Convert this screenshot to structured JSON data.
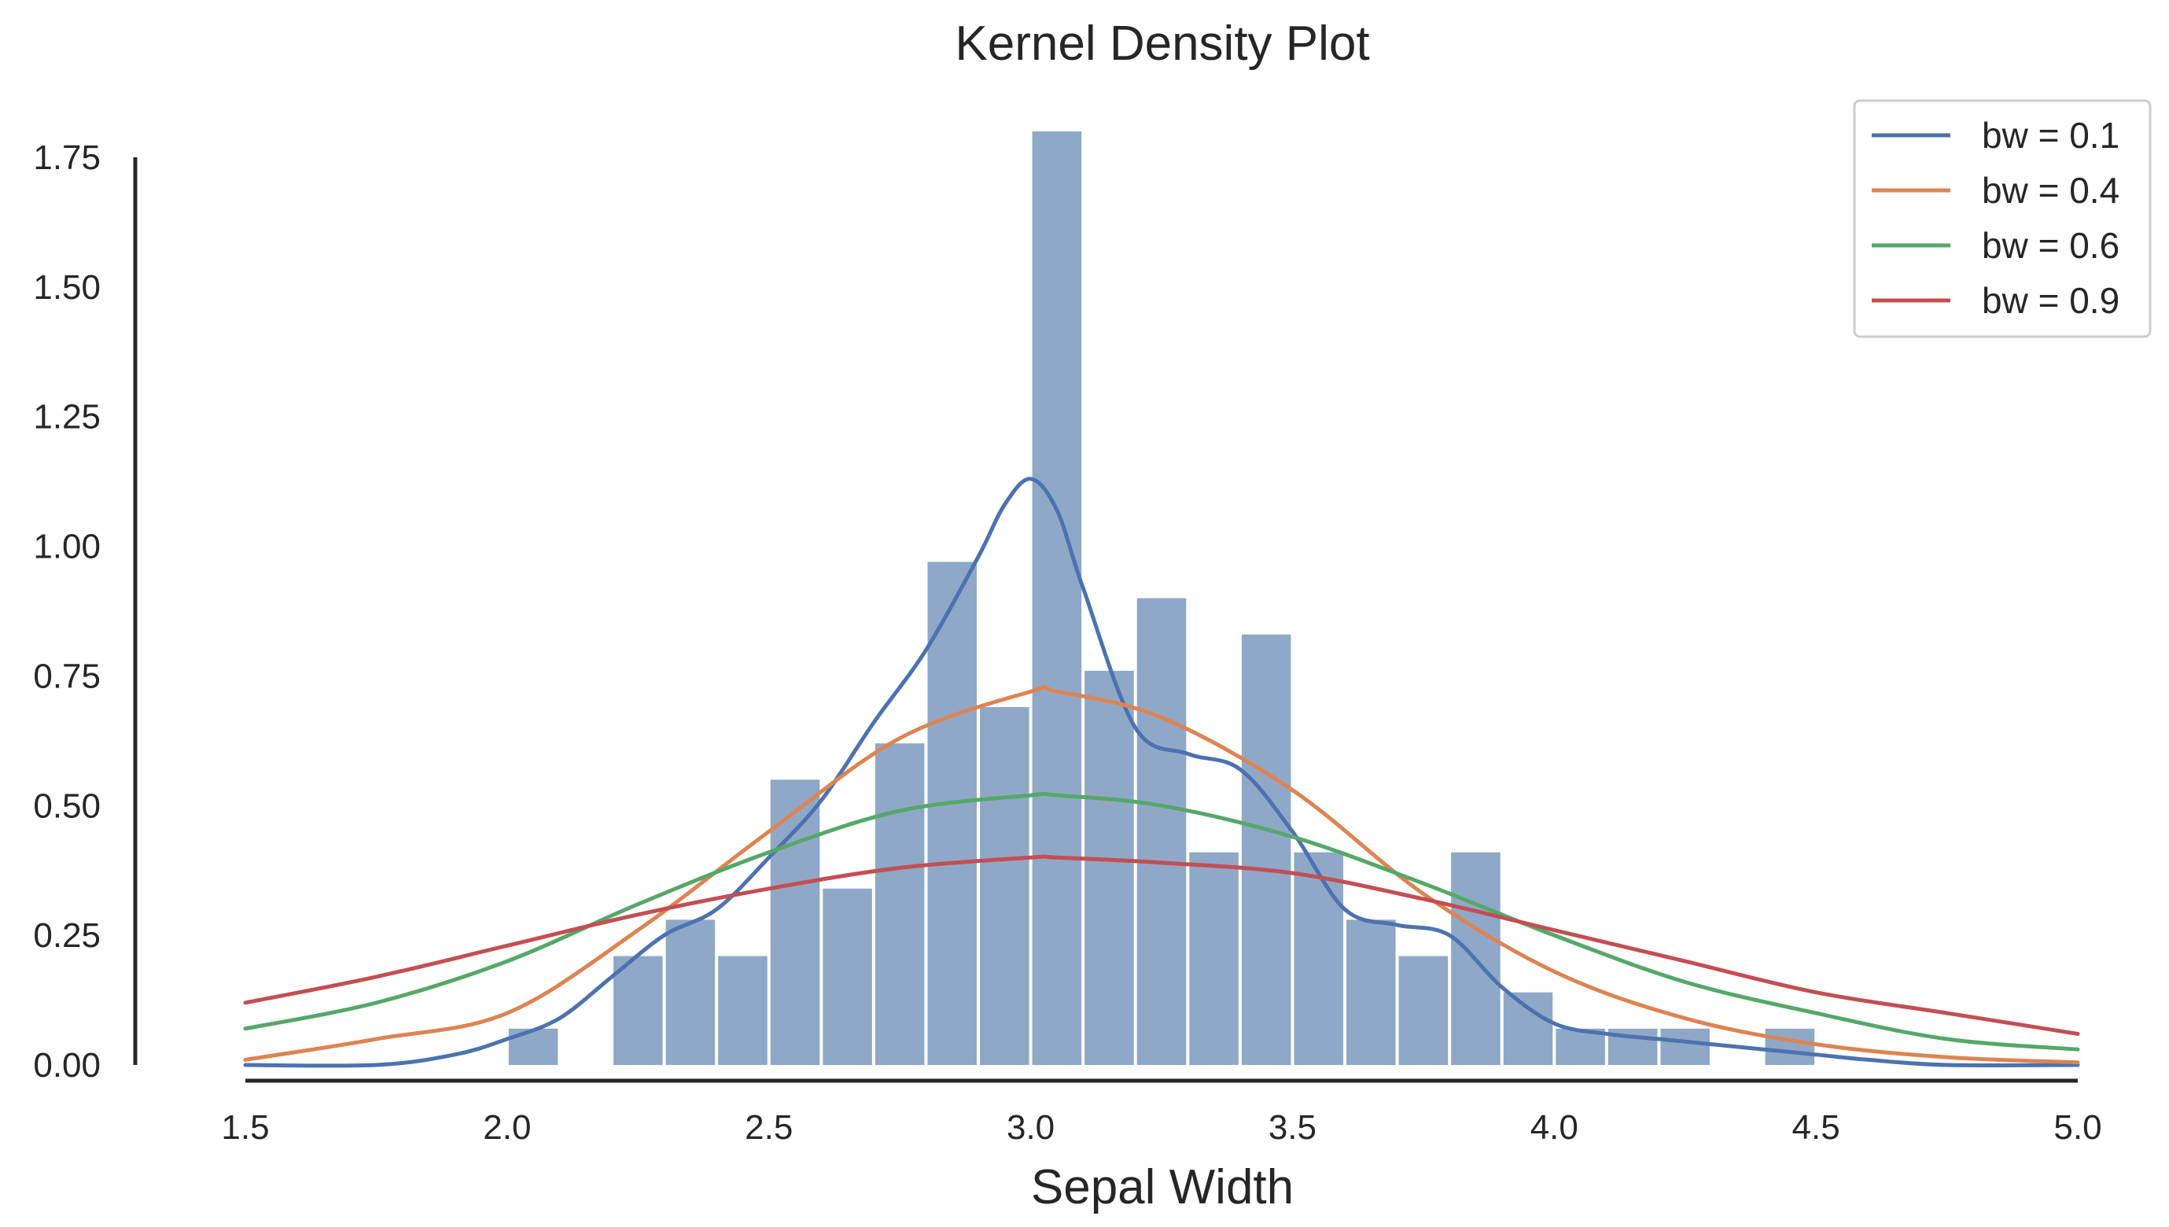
{
  "chart_data": {
    "type": "histogram+kde",
    "title": "Kernel Density Plot",
    "xlabel": "Sepal Width",
    "ylabel": "",
    "xlim": [
      1.5,
      5.0
    ],
    "ylim": [
      0,
      1.75
    ],
    "x_ticks": [
      "1.5",
      "2.0",
      "2.5",
      "3.0",
      "3.5",
      "4.0",
      "4.5",
      "5.0"
    ],
    "y_ticks": [
      "0.00",
      "0.25",
      "0.50",
      "0.75",
      "1.00",
      "1.25",
      "1.50",
      "1.75"
    ],
    "histogram": {
      "color": "#8fa8c8",
      "bins": [
        {
          "x0": 2.0,
          "x1": 2.1,
          "value": 0.07
        },
        {
          "x0": 2.2,
          "x1": 2.3,
          "value": 0.21
        },
        {
          "x0": 2.3,
          "x1": 2.4,
          "value": 0.28
        },
        {
          "x0": 2.4,
          "x1": 2.5,
          "value": 0.21
        },
        {
          "x0": 2.5,
          "x1": 2.6,
          "value": 0.55
        },
        {
          "x0": 2.6,
          "x1": 2.7,
          "value": 0.34
        },
        {
          "x0": 2.7,
          "x1": 2.8,
          "value": 0.62
        },
        {
          "x0": 2.8,
          "x1": 2.9,
          "value": 0.97
        },
        {
          "x0": 2.9,
          "x1": 3.0,
          "value": 0.69
        },
        {
          "x0": 3.0,
          "x1": 3.1,
          "value": 1.8
        },
        {
          "x0": 3.1,
          "x1": 3.2,
          "value": 0.76
        },
        {
          "x0": 3.2,
          "x1": 3.3,
          "value": 0.9
        },
        {
          "x0": 3.3,
          "x1": 3.4,
          "value": 0.41
        },
        {
          "x0": 3.4,
          "x1": 3.5,
          "value": 0.83
        },
        {
          "x0": 3.5,
          "x1": 3.6,
          "value": 0.41
        },
        {
          "x0": 3.6,
          "x1": 3.7,
          "value": 0.28
        },
        {
          "x0": 3.7,
          "x1": 3.8,
          "value": 0.21
        },
        {
          "x0": 3.8,
          "x1": 3.9,
          "value": 0.41
        },
        {
          "x0": 3.9,
          "x1": 4.0,
          "value": 0.14
        },
        {
          "x0": 4.0,
          "x1": 4.1,
          "value": 0.07
        },
        {
          "x0": 4.1,
          "x1": 4.2,
          "value": 0.07
        },
        {
          "x0": 4.2,
          "x1": 4.3,
          "value": 0.07
        },
        {
          "x0": 4.4,
          "x1": 4.5,
          "value": 0.07
        }
      ]
    },
    "series": [
      {
        "name": "bw = 0.1",
        "color": "#4c72b0",
        "x": [
          1.5,
          1.75,
          1.9,
          2.0,
          2.1,
          2.2,
          2.3,
          2.4,
          2.5,
          2.6,
          2.7,
          2.8,
          2.9,
          2.95,
          3.0,
          3.05,
          3.1,
          3.2,
          3.3,
          3.4,
          3.5,
          3.6,
          3.7,
          3.8,
          3.9,
          4.0,
          4.1,
          4.2,
          4.3,
          4.4,
          4.5,
          4.6,
          4.75,
          5.0
        ],
        "y": [
          0.0,
          0.0,
          0.02,
          0.05,
          0.09,
          0.17,
          0.25,
          0.3,
          0.4,
          0.51,
          0.66,
          0.8,
          0.98,
          1.08,
          1.13,
          1.07,
          0.92,
          0.65,
          0.6,
          0.57,
          0.45,
          0.3,
          0.27,
          0.25,
          0.15,
          0.08,
          0.06,
          0.05,
          0.04,
          0.03,
          0.02,
          0.01,
          0.0,
          0.0
        ]
      },
      {
        "name": "bw = 0.4",
        "color": "#dd8452",
        "x": [
          1.5,
          1.75,
          2.0,
          2.25,
          2.5,
          2.75,
          3.0,
          3.05,
          3.25,
          3.5,
          3.75,
          4.0,
          4.25,
          4.5,
          4.75,
          5.0
        ],
        "y": [
          0.01,
          0.05,
          0.1,
          0.26,
          0.45,
          0.63,
          0.72,
          0.72,
          0.67,
          0.53,
          0.33,
          0.18,
          0.09,
          0.04,
          0.015,
          0.005
        ]
      },
      {
        "name": "bw = 0.6",
        "color": "#55a868",
        "x": [
          1.5,
          1.75,
          2.0,
          2.25,
          2.5,
          2.75,
          3.0,
          3.05,
          3.25,
          3.5,
          3.75,
          4.0,
          4.25,
          4.5,
          4.75,
          5.0
        ],
        "y": [
          0.07,
          0.12,
          0.2,
          0.31,
          0.41,
          0.49,
          0.52,
          0.52,
          0.5,
          0.44,
          0.35,
          0.25,
          0.16,
          0.1,
          0.05,
          0.03
        ]
      },
      {
        "name": "bw = 0.9",
        "color": "#c44e52",
        "x": [
          1.5,
          1.75,
          2.0,
          2.25,
          2.5,
          2.75,
          3.0,
          3.05,
          3.25,
          3.5,
          3.75,
          4.0,
          4.25,
          4.5,
          4.75,
          5.0
        ],
        "y": [
          0.12,
          0.17,
          0.23,
          0.29,
          0.34,
          0.38,
          0.4,
          0.4,
          0.39,
          0.37,
          0.32,
          0.26,
          0.2,
          0.14,
          0.1,
          0.06
        ]
      }
    ],
    "legend": {
      "position": "top-right"
    },
    "grid": false
  }
}
